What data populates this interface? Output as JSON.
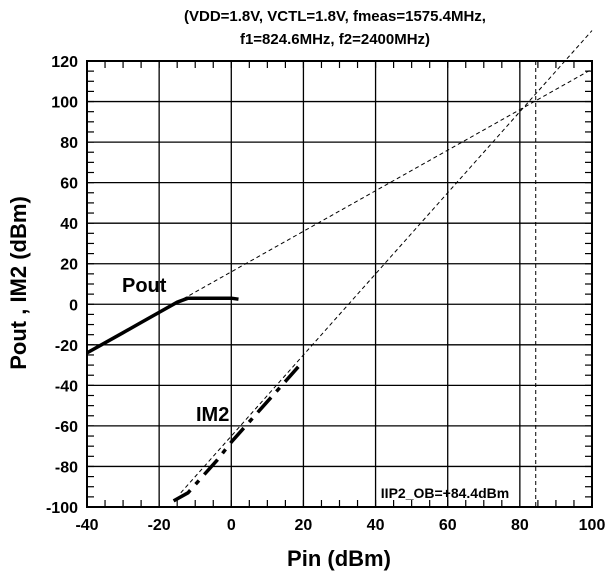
{
  "chart_data": {
    "type": "line",
    "title_line1": "(VDD=1.8V, VCTL=1.8V, fmeas=1575.4MHz,",
    "title_line2": "f1=824.6MHz, f2=2400MHz)",
    "xlabel": "Pin (dBm)",
    "ylabel": "Pout , IM2 (dBm)",
    "xlim": [
      -40,
      100
    ],
    "ylim": [
      -100,
      120
    ],
    "xticks": [
      -40,
      -20,
      0,
      20,
      40,
      60,
      80,
      100
    ],
    "yticks": [
      -100,
      -80,
      -60,
      -40,
      -20,
      0,
      20,
      40,
      60,
      80,
      100,
      120
    ],
    "grid": true,
    "series": [
      {
        "name": "Pout",
        "style": "solid",
        "x": [
          -40,
          -35,
          -30,
          -25,
          -20,
          -15,
          -12,
          -8,
          -4,
          0,
          2
        ],
        "y": [
          -24,
          -19,
          -14,
          -9,
          -4,
          1,
          3,
          3,
          3,
          3,
          2.5
        ]
      },
      {
        "name": "IM2",
        "style": "dashdot",
        "x": [
          -16,
          -12,
          -8,
          -4,
          0,
          4,
          8,
          12,
          16,
          20
        ],
        "y": [
          -97,
          -93,
          -85,
          -77,
          -68,
          -60,
          -52,
          -44,
          -36,
          -28
        ]
      }
    ],
    "extrapolations": [
      {
        "x": [
          -15,
          100
        ],
        "y": [
          1,
          116
        ]
      },
      {
        "x": [
          -14,
          100
        ],
        "y": [
          -93,
          135
        ]
      }
    ],
    "iip2_marker_x": 84.4,
    "annotation": "IIP2_OB=+84.4dBm"
  }
}
